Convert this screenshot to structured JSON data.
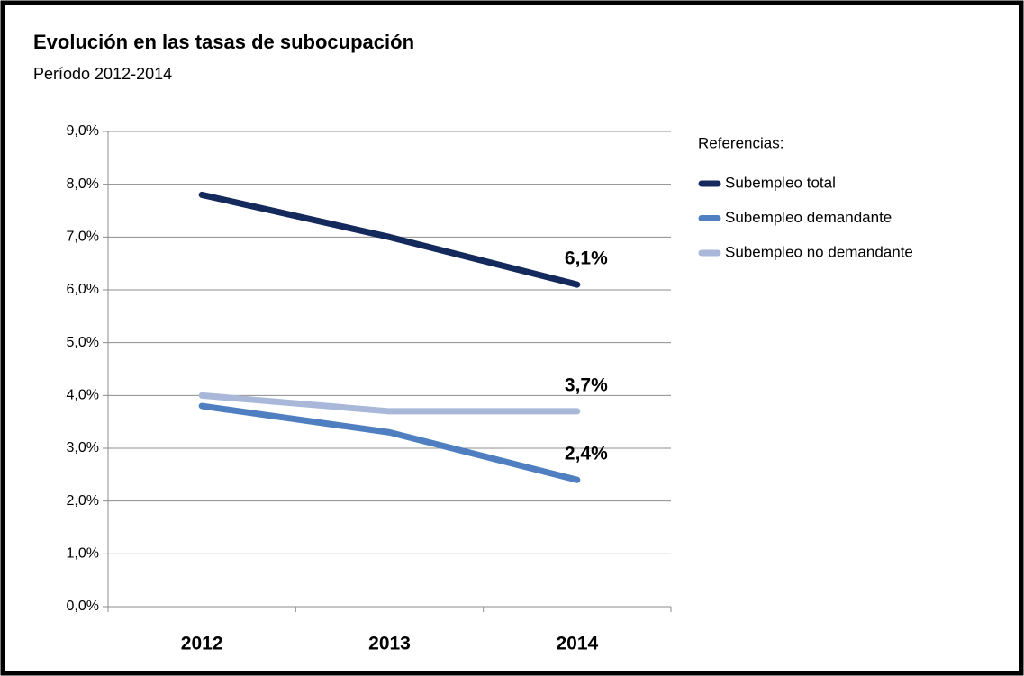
{
  "chart_data": {
    "type": "line",
    "title": "Evolución en las tasas de subocupación",
    "subtitle": "Período 2012-2014",
    "legend_title": "Referencias:",
    "legend": "right",
    "grid": true,
    "categories": [
      "2012",
      "2013",
      "2014"
    ],
    "series": [
      {
        "name": "Subempleo total",
        "color": "#14295c",
        "values": [
          7.8,
          7.0,
          6.1
        ],
        "value_labels": [
          null,
          null,
          "6,1%"
        ]
      },
      {
        "name": "Subempleo demandante",
        "color": "#4f7fc0",
        "values": [
          3.8,
          3.3,
          2.4
        ],
        "value_labels": [
          null,
          null,
          "2,4%"
        ]
      },
      {
        "name": "Subempleo no demandante",
        "color": "#a9b8d8",
        "values": [
          4.0,
          3.7,
          3.7
        ],
        "value_labels": [
          null,
          null,
          "3,7%"
        ]
      }
    ],
    "ylim": [
      0,
      9
    ],
    "yticks": [
      {
        "value": 0,
        "label": "0,0%"
      },
      {
        "value": 1,
        "label": "1,0%"
      },
      {
        "value": 2,
        "label": "2,0%"
      },
      {
        "value": 3,
        "label": "3,0%"
      },
      {
        "value": 4,
        "label": "4,0%"
      },
      {
        "value": 5,
        "label": "5,0%"
      },
      {
        "value": 6,
        "label": "6,0%"
      },
      {
        "value": 7,
        "label": "7,0%"
      },
      {
        "value": 8,
        "label": "8,0%"
      },
      {
        "value": 9,
        "label": "9,0%"
      }
    ]
  }
}
